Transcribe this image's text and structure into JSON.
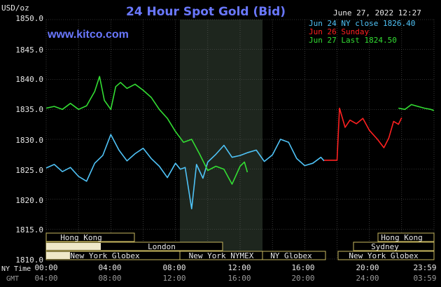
{
  "header": {
    "title": "24 Hour Spot Gold (Bid)",
    "unit": "USD/oz",
    "datetime": "June 27, 2022 12:27",
    "website": "www.kitco.com"
  },
  "colors": {
    "background": "#000000",
    "grid": "#606060",
    "title": "#6a78ff",
    "website": "#6a78ff",
    "series_jun24": "#4fc3f7",
    "series_jun26": "#ff2020",
    "series_jun27": "#33dd33",
    "session_shade": "#1e261e",
    "bar_fill": "#efe8c8",
    "axis_text": "#e8e8e8",
    "gmt_text": "#9a9a9a"
  },
  "sessions": {
    "left_labels": [
      "Hong Kong",
      "London",
      "New York Globex",
      "New York NYMEX",
      "NY Globex"
    ],
    "right_labels": [
      "Hong Kong",
      "Sydney",
      "New York Globex"
    ]
  },
  "chart_data": {
    "type": "line",
    "title": "24 Hour Spot Gold (Bid)",
    "ylabel": "USD/oz",
    "ylim": [
      1810,
      1850
    ],
    "y_ticks": [
      "1850.0",
      "1845.0",
      "1840.0",
      "1835.0",
      "1830.0",
      "1825.0",
      "1820.0",
      "1815.0",
      "1810.0"
    ],
    "x_axis_label_primary": "NY Time",
    "x_axis_label_secondary": "GMT",
    "x_ticks_ny": [
      "00:00",
      "04:00",
      "08:00",
      "12:00",
      "16:00",
      "20:00",
      "23:59"
    ],
    "x_ticks_gmt": [
      "04:00",
      "08:00",
      "12:00",
      "16:00",
      "20:00",
      "24:00",
      "03:59"
    ],
    "grid": true,
    "legend_position": "top-right",
    "x_unit": "hours (NY Time)",
    "series": [
      {
        "name": "Jun 24 NY close 1826.40",
        "color": "#4fc3f7",
        "x": [
          0,
          0.5,
          1,
          1.5,
          2,
          2.5,
          3,
          3.5,
          4,
          4.5,
          5,
          5.5,
          6,
          6.5,
          7,
          7.5,
          8,
          8.3,
          8.6,
          9,
          9.3,
          9.7,
          10,
          10.5,
          11,
          11.5,
          12,
          12.5,
          13,
          13.5,
          14,
          14.5,
          15,
          15.5,
          16,
          16.5,
          17,
          17.2
        ],
        "y": [
          1825.2,
          1825.8,
          1824.6,
          1825.3,
          1823.8,
          1823.0,
          1826.0,
          1827.3,
          1830.8,
          1828.2,
          1826.4,
          1827.6,
          1828.5,
          1826.8,
          1825.5,
          1823.6,
          1826.0,
          1825.0,
          1825.3,
          1818.4,
          1825.8,
          1823.5,
          1826.2,
          1827.5,
          1829.0,
          1827.0,
          1827.3,
          1827.8,
          1828.2,
          1826.3,
          1827.4,
          1830.0,
          1829.5,
          1826.8,
          1825.6,
          1826.0,
          1827.0,
          1826.4
        ]
      },
      {
        "name": "Jun 26 Sunday",
        "color": "#ff2020",
        "x": [
          17.2,
          17.8,
          18.0,
          18.15,
          18.5,
          18.8,
          19.2,
          19.6,
          20.0,
          20.5,
          20.9,
          21.2,
          21.5,
          21.8,
          22.0
        ],
        "y": [
          1826.5,
          1826.5,
          1826.5,
          1835.2,
          1832.0,
          1833.2,
          1832.6,
          1833.5,
          1831.5,
          1830.0,
          1828.6,
          1830.2,
          1833.0,
          1832.5,
          1833.6
        ]
      },
      {
        "name": "Jun 27 Last 1824.50",
        "color": "#33dd33",
        "x": [
          0,
          0.5,
          1,
          1.5,
          2,
          2.5,
          3,
          3.3,
          3.6,
          4,
          4.3,
          4.6,
          5,
          5.5,
          6,
          6.5,
          7,
          7.5,
          8,
          8.5,
          9,
          9.5,
          10,
          10.5,
          11,
          11.5,
          12,
          12.27,
          12.45,
          21.8,
          22.2,
          22.6,
          23.0,
          23.4,
          23.8,
          23.99
        ],
        "y": [
          1835.2,
          1835.5,
          1835.0,
          1836.0,
          1835.0,
          1835.6,
          1838.0,
          1840.5,
          1836.5,
          1835.0,
          1838.8,
          1839.5,
          1838.5,
          1839.2,
          1838.2,
          1837.0,
          1835.0,
          1833.5,
          1831.3,
          1829.5,
          1830.0,
          1827.5,
          1824.8,
          1825.5,
          1825.0,
          1822.5,
          1825.5,
          1826.2,
          1824.5,
          1835.2,
          1835.0,
          1835.8,
          1835.5,
          1835.2,
          1835.0,
          1834.8
        ]
      }
    ]
  }
}
